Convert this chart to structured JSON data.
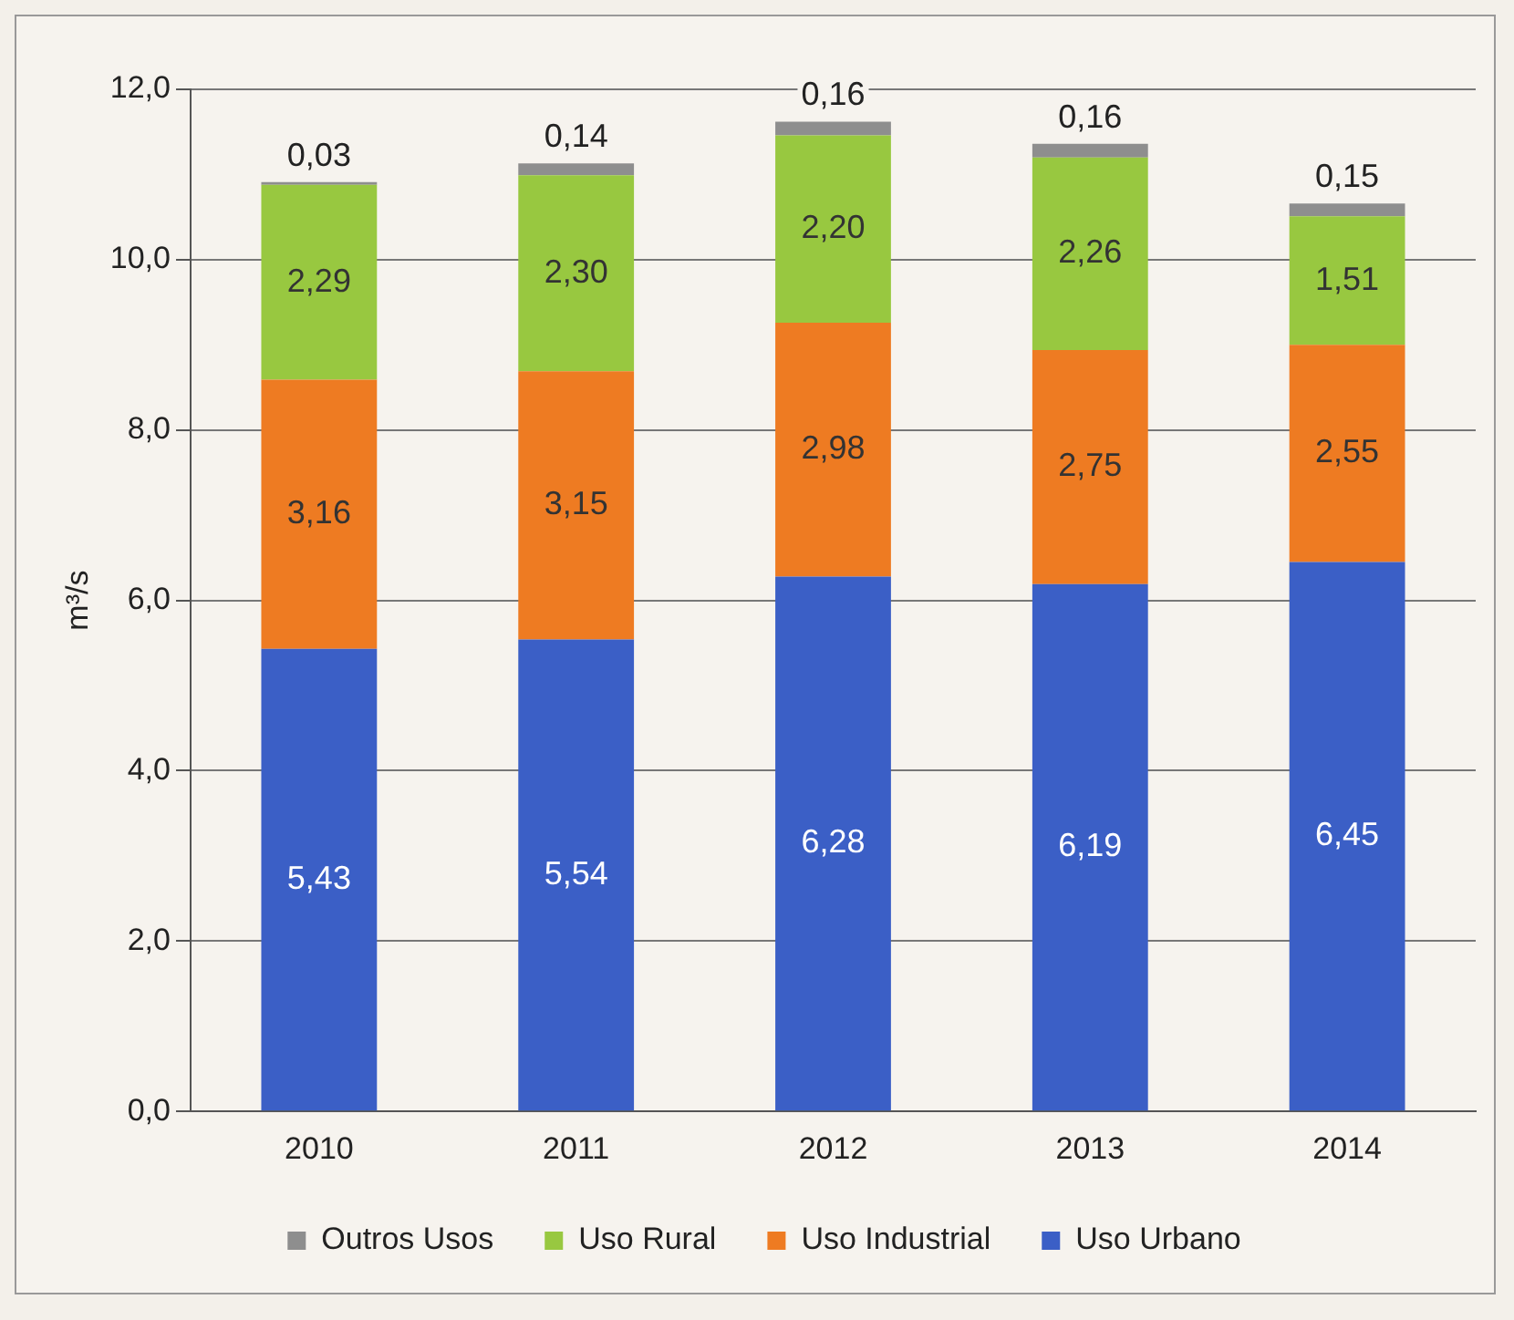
{
  "chart_data": {
    "type": "bar",
    "stacked": true,
    "ylabel": "m³/s",
    "categories": [
      "2010",
      "2011",
      "2012",
      "2013",
      "2014"
    ],
    "series": [
      {
        "name": "Uso Urbano",
        "color": "#3b5fc6",
        "values": [
          5.43,
          5.54,
          6.28,
          6.19,
          6.45
        ],
        "value_labels": [
          "5,43",
          "5,54",
          "6,28",
          "6,19",
          "6,45"
        ]
      },
      {
        "name": "Uso Industrial",
        "color": "#ee7b22",
        "values": [
          3.16,
          3.15,
          2.98,
          2.75,
          2.55
        ],
        "value_labels": [
          "3,16",
          "3,15",
          "2,98",
          "2,75",
          "2,55"
        ]
      },
      {
        "name": "Uso Rural",
        "color": "#98c840",
        "values": [
          2.29,
          2.3,
          2.2,
          2.26,
          1.51
        ],
        "value_labels": [
          "2,29",
          "2,30",
          "2,20",
          "2,26",
          "1,51"
        ]
      },
      {
        "name": "Outros Usos",
        "color": "#8e8e8e",
        "values": [
          0.03,
          0.14,
          0.16,
          0.16,
          0.15
        ],
        "value_labels": [
          "0,03",
          "0,14",
          "0,16",
          "0,16",
          "0,15"
        ]
      }
    ],
    "ylim": [
      0,
      12
    ],
    "yticks": [
      {
        "value": 0,
        "label": "0,0"
      },
      {
        "value": 2,
        "label": "2,0"
      },
      {
        "value": 4,
        "label": "4,0"
      },
      {
        "value": 6,
        "label": "6,0"
      },
      {
        "value": 8,
        "label": "8,0"
      },
      {
        "value": 10,
        "label": "10,0"
      },
      {
        "value": 12,
        "label": "12,0"
      }
    ],
    "grid": "y",
    "legend": "bottom"
  }
}
